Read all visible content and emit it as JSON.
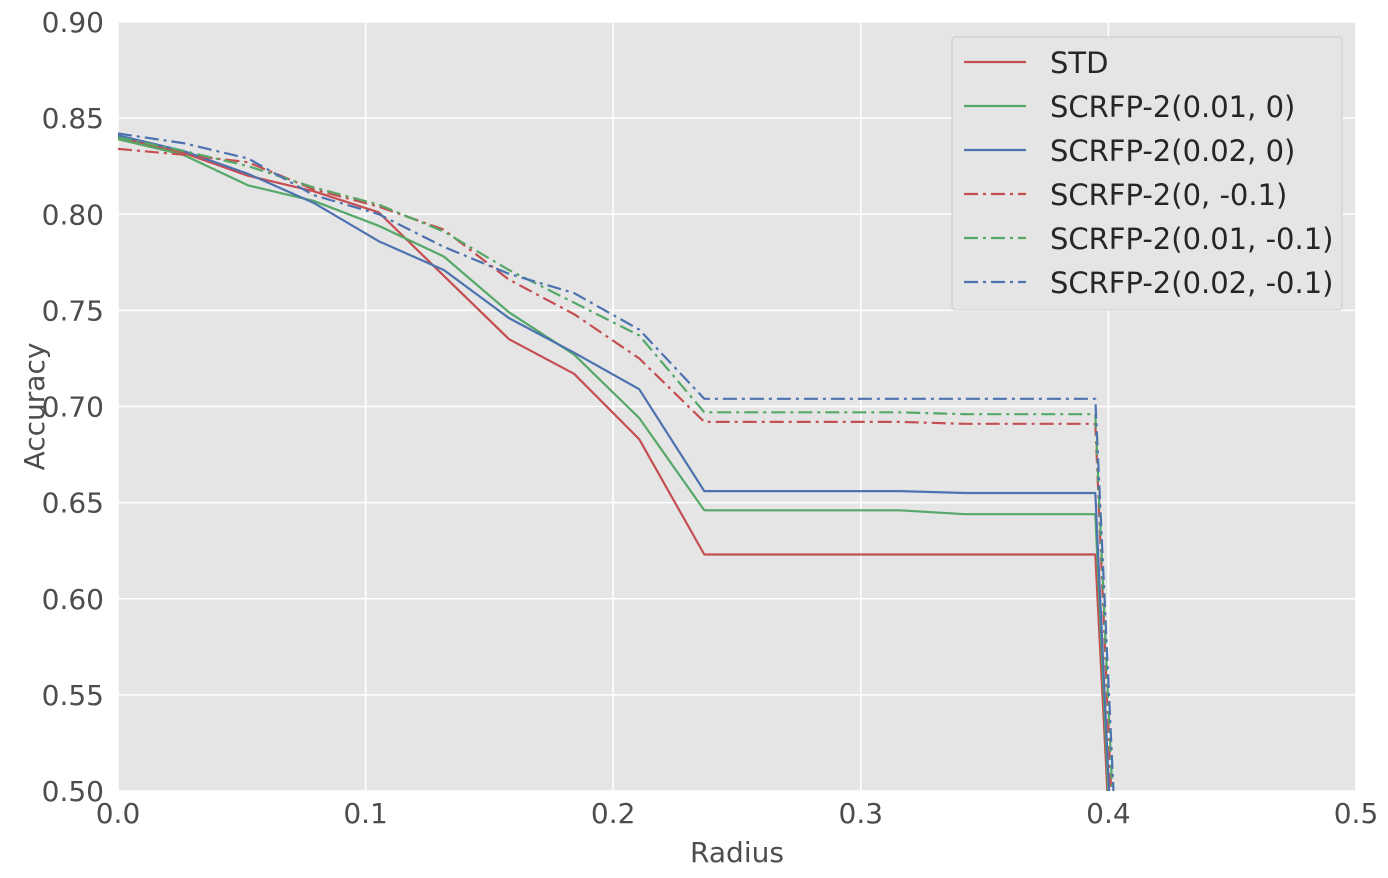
{
  "chart_data": {
    "type": "line",
    "xlabel": "Radius",
    "ylabel": "Accuracy",
    "xlim": [
      0.0,
      0.5
    ],
    "ylim": [
      0.5,
      0.9
    ],
    "xticks": [
      "0.0",
      "0.1",
      "0.2",
      "0.3",
      "0.4",
      "0.5"
    ],
    "yticks": [
      "0.50",
      "0.55",
      "0.60",
      "0.65",
      "0.70",
      "0.75",
      "0.80",
      "0.85",
      "0.90"
    ],
    "grid": true,
    "legend_position": "top-right",
    "x": [
      0.0,
      0.0263,
      0.0526,
      0.0789,
      0.1053,
      0.1316,
      0.1579,
      0.1842,
      0.2105,
      0.2368,
      0.2632,
      0.2895,
      0.3158,
      0.3421,
      0.3684,
      0.3947,
      0.4
    ],
    "series": [
      {
        "name": "STD",
        "color": "#c44e52",
        "dash": "solid",
        "values": [
          0.84,
          0.832,
          0.82,
          0.812,
          0.801,
          0.768,
          0.735,
          0.717,
          0.683,
          0.623,
          0.623,
          0.623,
          0.623,
          0.623,
          0.623,
          0.623,
          0.5
        ]
      },
      {
        "name": "SCRFP-2(0.01, 0)",
        "color": "#55a868",
        "dash": "solid",
        "values": [
          0.839,
          0.831,
          0.815,
          0.807,
          0.794,
          0.778,
          0.749,
          0.727,
          0.694,
          0.646,
          0.646,
          0.646,
          0.646,
          0.644,
          0.644,
          0.644,
          0.5
        ]
      },
      {
        "name": "SCRFP-2(0.02, 0)",
        "color": "#4c72b0",
        "dash": "solid",
        "values": [
          0.841,
          0.833,
          0.821,
          0.806,
          0.786,
          0.771,
          0.746,
          0.728,
          0.709,
          0.656,
          0.656,
          0.656,
          0.656,
          0.655,
          0.655,
          0.655,
          0.5
        ]
      },
      {
        "name": "SCRFP-2(0, -0.1)",
        "color": "#c44e52",
        "dash": "dashdot",
        "values": [
          0.834,
          0.831,
          0.827,
          0.813,
          0.804,
          0.792,
          0.766,
          0.748,
          0.725,
          0.692,
          0.692,
          0.692,
          0.692,
          0.691,
          0.691,
          0.691,
          0.5
        ]
      },
      {
        "name": "SCRFP-2(0.01, -0.1)",
        "color": "#55a868",
        "dash": "dashdot",
        "values": [
          0.84,
          0.833,
          0.825,
          0.814,
          0.805,
          0.791,
          0.771,
          0.754,
          0.737,
          0.697,
          0.697,
          0.697,
          0.697,
          0.696,
          0.696,
          0.696,
          0.5
        ]
      },
      {
        "name": "SCRFP-2(0.02, -0.1)",
        "color": "#4c72b0",
        "dash": "dashdot",
        "values": [
          0.842,
          0.837,
          0.829,
          0.81,
          0.8,
          0.783,
          0.769,
          0.759,
          0.74,
          0.704,
          0.704,
          0.704,
          0.704,
          0.704,
          0.704,
          0.704,
          0.5
        ]
      }
    ]
  }
}
